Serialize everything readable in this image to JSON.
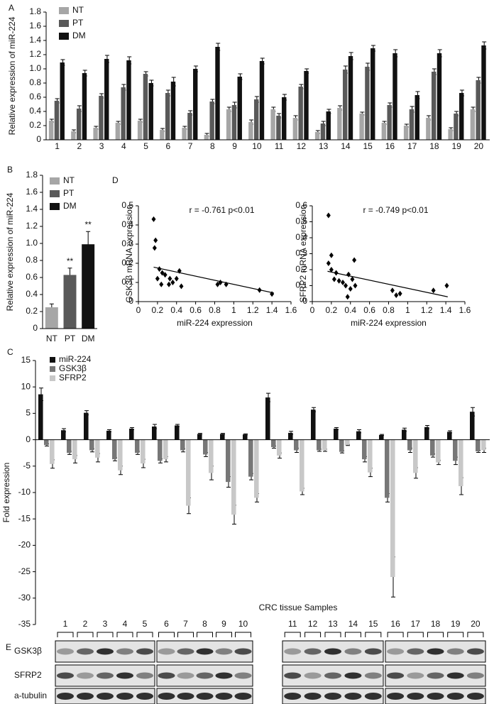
{
  "chart_data": [
    {
      "type": "bar",
      "panel": "A",
      "ylabel": "Relative expression of miR-224",
      "categories": [
        "1",
        "2",
        "3",
        "4",
        "5",
        "6",
        "7",
        "8",
        "9",
        "10",
        "11",
        "12",
        "13",
        "14",
        "15",
        "16",
        "17",
        "18",
        "19",
        "20"
      ],
      "series": [
        {
          "name": "NT",
          "color": "#a6a6a6",
          "values": [
            0.27,
            0.12,
            0.17,
            0.24,
            0.27,
            0.14,
            0.17,
            0.07,
            0.43,
            0.25,
            0.43,
            0.31,
            0.11,
            0.45,
            0.37,
            0.24,
            0.2,
            0.31,
            0.15,
            0.43
          ],
          "errors": [
            0.02,
            0.02,
            0.02,
            0.02,
            0.02,
            0.02,
            0.02,
            0.02,
            0.03,
            0.03,
            0.03,
            0.03,
            0.02,
            0.03,
            0.02,
            0.02,
            0.02,
            0.03,
            0.02,
            0.03
          ]
        },
        {
          "name": "PT",
          "color": "#595959",
          "values": [
            0.55,
            0.44,
            0.62,
            0.74,
            0.93,
            0.66,
            0.38,
            0.54,
            0.49,
            0.57,
            0.34,
            0.75,
            0.23,
            0.99,
            1.03,
            0.49,
            0.43,
            0.96,
            0.37,
            0.84
          ],
          "errors": [
            0.03,
            0.04,
            0.03,
            0.04,
            0.03,
            0.04,
            0.03,
            0.03,
            0.04,
            0.04,
            0.03,
            0.03,
            0.03,
            0.05,
            0.05,
            0.03,
            0.04,
            0.04,
            0.03,
            0.04
          ]
        },
        {
          "name": "DM",
          "color": "#111111",
          "values": [
            1.09,
            0.94,
            1.14,
            1.12,
            0.8,
            0.82,
            1.0,
            1.31,
            0.89,
            1.11,
            0.6,
            0.97,
            0.4,
            1.18,
            1.29,
            1.22,
            0.63,
            1.22,
            0.66,
            1.33
          ],
          "errors": [
            0.04,
            0.04,
            0.05,
            0.05,
            0.04,
            0.06,
            0.04,
            0.05,
            0.04,
            0.04,
            0.04,
            0.03,
            0.03,
            0.05,
            0.04,
            0.05,
            0.05,
            0.05,
            0.04,
            0.05
          ]
        }
      ],
      "ylim": [
        0,
        1.8
      ],
      "yticks": [
        0,
        0.2,
        0.4,
        0.6,
        0.8,
        {
          "value": 1,
          "label": "1.0"
        },
        1.2,
        1.4,
        1.6,
        1.8
      ]
    },
    {
      "type": "bar",
      "panel": "B",
      "ylabel": "Relative expression of miR-224",
      "categories": [
        "NT",
        "PT",
        "DM"
      ],
      "values": [
        0.25,
        0.63,
        0.99
      ],
      "errors": [
        0.04,
        0.08,
        0.15
      ],
      "colors": [
        "#a6a6a6",
        "#595959",
        "#111111"
      ],
      "annotations": [
        {
          "text": "**",
          "category": "PT"
        },
        {
          "text": "**",
          "category": "DM"
        }
      ],
      "ylim": [
        0,
        1.8
      ],
      "yticks": [
        0,
        0.2,
        0.4,
        0.6,
        0.8,
        {
          "value": 1,
          "label": "1.0"
        },
        1.2,
        1.4,
        1.6,
        1.8
      ]
    },
    {
      "type": "scatter",
      "panel": "D",
      "xlabel": "miR-224 expression",
      "ylabel": "GSK3β mRNA expression",
      "annotation": "r = -0.761  p<0.01",
      "color": "#000000",
      "x": [
        0.16,
        0.18,
        0.17,
        0.2,
        0.22,
        0.25,
        0.28,
        0.24,
        0.32,
        0.33,
        0.36,
        0.4,
        0.43,
        0.45,
        0.83,
        0.86,
        0.92,
        1.27,
        1.4
      ],
      "values": [
        0.43,
        0.32,
        0.28,
        0.12,
        0.17,
        0.15,
        0.14,
        0.09,
        0.09,
        0.12,
        0.1,
        0.12,
        0.16,
        0.08,
        0.09,
        0.1,
        0.09,
        0.06,
        0.04
      ],
      "trendline": {
        "x": [
          0.16,
          1.42
        ],
        "y": [
          0.18,
          0.045
        ]
      },
      "xlim": [
        0,
        1.6
      ],
      "xticks": [
        0,
        0.2,
        0.4,
        0.6,
        0.8,
        1,
        1.2,
        1.4,
        1.6
      ],
      "ylim": [
        0,
        0.5
      ],
      "yticks": [
        0,
        0.1,
        0.2,
        0.3,
        0.4,
        0.5
      ]
    },
    {
      "type": "scatter",
      "xlabel": "miR-224 expression",
      "ylabel": "SFRP2 mRNA expression",
      "annotation": "r = -0.749  p<0.01",
      "color": "#000000",
      "x": [
        0.17,
        0.2,
        0.17,
        0.2,
        0.23,
        0.25,
        0.28,
        0.32,
        0.35,
        0.38,
        0.4,
        0.42,
        0.37,
        0.45,
        0.44,
        0.84,
        0.88,
        0.92,
        1.27,
        1.41
      ],
      "values": [
        0.54,
        0.29,
        0.24,
        0.2,
        0.14,
        0.18,
        0.13,
        0.12,
        0.1,
        0.17,
        0.08,
        0.14,
        0.03,
        0.1,
        0.26,
        0.07,
        0.04,
        0.05,
        0.07,
        0.1
      ],
      "trendline": {
        "x": [
          0.16,
          1.42
        ],
        "y": [
          0.19,
          0.03
        ]
      },
      "xlim": [
        0,
        1.6
      ],
      "xticks": [
        0,
        0.2,
        0.4,
        0.6,
        0.8,
        1,
        1.2,
        1.4,
        1.6
      ],
      "ylim": [
        0,
        0.6
      ],
      "yticks": [
        0,
        0.1,
        0.2,
        0.3,
        0.4,
        0.5,
        0.6
      ]
    },
    {
      "type": "bar",
      "panel": "C",
      "ylabel": "Fold expression",
      "xlabel": "CRC tissue Samples",
      "categories": [
        null,
        null,
        null,
        null,
        null,
        null,
        null,
        null,
        null,
        null,
        null,
        null,
        null,
        null,
        null,
        null,
        null,
        null,
        null,
        null
      ],
      "series": [
        {
          "name": "miR-224",
          "color": "#111111",
          "values": [
            8.6,
            1.8,
            5.1,
            1.7,
            2.1,
            2.5,
            2.7,
            1.1,
            1.1,
            1.0,
            8.0,
            1.3,
            5.7,
            2.1,
            1.6,
            0.9,
            1.9,
            2.4,
            1.5,
            5.3
          ],
          "errors": [
            1.2,
            0.3,
            0.4,
            0.2,
            0.2,
            0.4,
            0.2,
            0.1,
            0.1,
            0.1,
            0.8,
            0.3,
            0.4,
            0.2,
            0.3,
            0.1,
            0.3,
            0.3,
            0.2,
            0.8
          ]
        },
        {
          "name": "GSK3β",
          "color": "#777777",
          "values": [
            -1.0,
            -2.5,
            -2.0,
            -3.7,
            -2.5,
            -4.0,
            -2.0,
            -2.8,
            -8.0,
            -7.0,
            -1.4,
            -2.0,
            -2.0,
            -2.3,
            -3.7,
            -11.0,
            -2.0,
            -3.0,
            -4.0,
            -2.2
          ],
          "errors": [
            0.2,
            0.3,
            0.3,
            0.3,
            0.3,
            0.4,
            0.3,
            0.4,
            1.0,
            0.6,
            0.2,
            0.4,
            0.2,
            0.2,
            0.5,
            0.8,
            0.4,
            0.3,
            0.7,
            0.2
          ]
        },
        {
          "name": "SFRP2",
          "color": "#c8c8c8",
          "values": [
            -4.6,
            -3.7,
            -3.4,
            -5.8,
            -4.5,
            -3.7,
            -12.5,
            -6.3,
            -14.2,
            -11.0,
            -3.0,
            -9.8,
            -2.0,
            -1.0,
            -6.2,
            -26.0,
            -6.3,
            -4.3,
            -8.8,
            -2.0
          ],
          "errors": [
            0.8,
            0.7,
            0.8,
            0.8,
            0.8,
            0.5,
            1.5,
            1.3,
            1.8,
            0.8,
            0.5,
            0.6,
            0.2,
            0.1,
            0.8,
            3.8,
            1.0,
            0.4,
            1.6,
            0.4
          ]
        }
      ],
      "ylim": [
        -35,
        15
      ],
      "yticks": [
        -35,
        -30,
        -25,
        -20,
        -15,
        -10,
        -5,
        0,
        5,
        10,
        15
      ]
    }
  ],
  "blot": {
    "panel": "E",
    "lanes": [
      "1",
      "2",
      "3",
      "4",
      "5",
      "6",
      "7",
      "8",
      "9",
      "10",
      "11",
      "12",
      "13",
      "14",
      "15",
      "16",
      "17",
      "18",
      "19",
      "20"
    ],
    "rows": [
      "GSK3β",
      "SFRP2",
      "a-tubulin"
    ]
  }
}
